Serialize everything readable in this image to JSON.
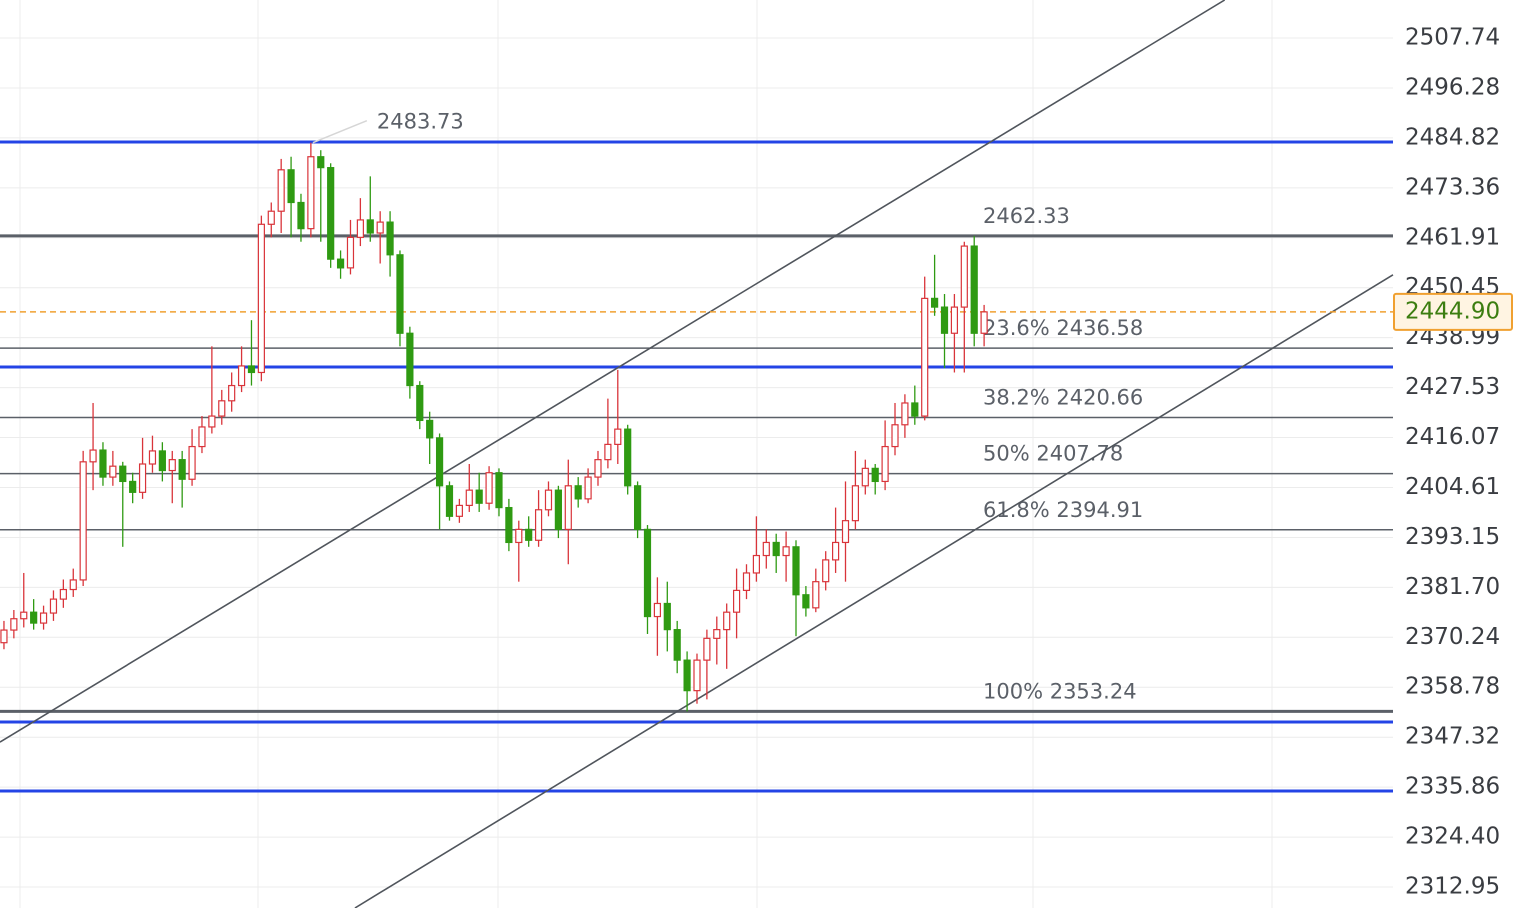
{
  "chart_data": {
    "type": "candlestick",
    "up_color": "#d9343a",
    "down_color": "#2f9a12",
    "xlim": [
      -0.4,
      140.3
    ],
    "ylim": [
      2308.13,
      2516.46
    ],
    "yticks": [
      2312.95,
      {
        "value": 2324.4,
        "label": "2324.40"
      },
      2335.86,
      2347.32,
      2358.78,
      2370.24,
      {
        "value": 2381.7,
        "label": "2381.70"
      },
      2393.15,
      2404.61,
      2416.07,
      2427.53,
      2438.99,
      2450.45,
      2461.91,
      2473.36,
      2484.82,
      2496.28,
      2507.74
    ],
    "grid": true,
    "open": [
      2369.0,
      2371.9,
      2374.5,
      2376.0,
      2373.5,
      2375.8,
      2379.0,
      2381.2,
      2383.4,
      2410.5,
      2413.2,
      2407.0,
      2409.5,
      2406.0,
      2403.5,
      2410.0,
      2413.0,
      2408.5,
      2411.0,
      2406.5,
      2414.0,
      2418.5,
      2421.0,
      2424.5,
      2428.0,
      2432.5,
      2431.0,
      2465.0,
      2468.0,
      2477.5,
      2470.0,
      2464.0,
      2480.5,
      2478.0,
      2457.0,
      2455.0,
      2462.0,
      2466.0,
      2463.0,
      2465.5,
      2458.0,
      2440.0,
      2428.0,
      2420.0,
      2416.0,
      2405.0,
      2398.0,
      2400.5,
      2404.0,
      2401.0,
      2408.0,
      2400.0,
      2392.0,
      2395.0,
      2392.5,
      2399.5,
      2404.0,
      2395.0,
      2405.0,
      2402.0,
      2407.0,
      2411.0,
      2414.5,
      2418.0,
      2405.0,
      2395.0,
      2375.0,
      2378.0,
      2372.0,
      2365.0,
      2358.0,
      2365.0,
      2370.0,
      2372.0,
      2376.0,
      2381.0,
      2385.0,
      2389.0,
      2392.0,
      2389.0,
      2391.0,
      2380.0,
      2377.0,
      2383.0,
      2388.0,
      2392.0,
      2397.0,
      2405.0,
      2409.0,
      2406.0,
      2414.0,
      2419.0,
      2424.0,
      2421.0,
      2448.0,
      2446.0,
      2440.0,
      2446.0,
      2460.0,
      2440.0
    ],
    "high": [
      2374.0,
      2376.5,
      2385.0,
      2379.0,
      2377.5,
      2381.0,
      2383.5,
      2386.0,
      2413.0,
      2424.0,
      2415.0,
      2413.0,
      2410.5,
      2408.0,
      2416.0,
      2416.5,
      2415.0,
      2413.0,
      2413.0,
      2418.0,
      2421.0,
      2437.0,
      2427.0,
      2431.0,
      2437.0,
      2443.0,
      2467.0,
      2470.0,
      2480.0,
      2480.5,
      2472.0,
      2483.73,
      2482.0,
      2479.0,
      2459.0,
      2466.0,
      2471.0,
      2476.0,
      2468.0,
      2468.0,
      2459.0,
      2441.5,
      2429.0,
      2422.0,
      2417.0,
      2406.0,
      2402.0,
      2410.0,
      2408.0,
      2409.5,
      2409.0,
      2402.0,
      2397.0,
      2398.0,
      2404.0,
      2406.0,
      2405.0,
      2411.0,
      2407.0,
      2409.0,
      2413.0,
      2425.0,
      2431.6,
      2419.0,
      2406.0,
      2396.0,
      2384.0,
      2383.0,
      2374.0,
      2367.0,
      2366.5,
      2372.0,
      2375.0,
      2378.0,
      2386.0,
      2387.0,
      2398.0,
      2395.0,
      2394.0,
      2394.5,
      2392.5,
      2382.0,
      2386.0,
      2390.0,
      2400.0,
      2406.0,
      2413.0,
      2411.0,
      2410.0,
      2420.0,
      2424.0,
      2426.0,
      2428.0,
      2453.0,
      2458.0,
      2449.0,
      2449.0,
      2461.0,
      2462.33,
      2446.5
    ],
    "low": [
      2367.5,
      2370.0,
      2372.5,
      2372.0,
      2372.0,
      2374.0,
      2377.0,
      2379.5,
      2382.0,
      2404.0,
      2405.0,
      2405.0,
      2391.0,
      2401.0,
      2402.0,
      2408.0,
      2406.0,
      2401.0,
      2400.0,
      2405.0,
      2412.5,
      2417.0,
      2419.0,
      2422.0,
      2426.5,
      2428.0,
      2429.0,
      2462.0,
      2463.0,
      2462.0,
      2461.0,
      2462.0,
      2461.0,
      2455.0,
      2452.5,
      2453.5,
      2460.0,
      2461.0,
      2456.0,
      2453.0,
      2437.0,
      2425.0,
      2418.0,
      2410.0,
      2395.0,
      2397.0,
      2396.5,
      2399.0,
      2399.0,
      2399.5,
      2398.0,
      2390.0,
      2383.0,
      2391.0,
      2391.0,
      2398.0,
      2393.0,
      2387.0,
      2400.0,
      2401.0,
      2405.0,
      2409.0,
      2410.0,
      2403.0,
      2393.0,
      2371.0,
      2366.0,
      2367.0,
      2362.0,
      2353.24,
      2355.0,
      2356.0,
      2364.0,
      2363.0,
      2370.0,
      2379.0,
      2383.0,
      2386.0,
      2385.0,
      2383.0,
      2370.5,
      2375.0,
      2376.0,
      2381.0,
      2385.0,
      2383.0,
      2395.0,
      2403.0,
      2403.0,
      2404.0,
      2412.0,
      2416.0,
      2419.0,
      2420.0,
      2444.0,
      2432.0,
      2431.0,
      2431.0,
      2437.0,
      2437.0
    ],
    "close": [
      2371.9,
      2374.5,
      2376.0,
      2373.5,
      2375.8,
      2379.0,
      2381.2,
      2383.4,
      2410.5,
      2413.2,
      2407.0,
      2409.5,
      2406.0,
      2403.5,
      2410.0,
      2413.0,
      2408.5,
      2411.0,
      2406.5,
      2414.0,
      2418.5,
      2421.0,
      2424.5,
      2428.0,
      2432.5,
      2431.0,
      2465.0,
      2468.0,
      2477.5,
      2470.0,
      2464.0,
      2480.5,
      2478.0,
      2457.0,
      2455.0,
      2462.0,
      2466.0,
      2463.0,
      2465.5,
      2458.0,
      2440.0,
      2428.0,
      2420.0,
      2416.0,
      2405.0,
      2398.0,
      2400.5,
      2404.0,
      2401.0,
      2408.0,
      2400.0,
      2392.0,
      2395.0,
      2392.5,
      2399.5,
      2404.0,
      2395.0,
      2405.0,
      2402.0,
      2407.0,
      2411.0,
      2414.5,
      2418.0,
      2405.0,
      2395.0,
      2375.0,
      2378.0,
      2372.0,
      2365.0,
      2358.0,
      2365.0,
      2370.0,
      2372.0,
      2376.0,
      2381.0,
      2385.0,
      2389.0,
      2392.0,
      2389.0,
      2391.0,
      2380.0,
      2377.0,
      2383.0,
      2388.0,
      2392.0,
      2397.0,
      2405.0,
      2409.0,
      2406.0,
      2414.0,
      2419.0,
      2424.0,
      2421.0,
      2448.0,
      2446.0,
      2440.0,
      2446.0,
      2460.0,
      2440.0,
      2444.9
    ],
    "peak_label": 2483.73,
    "horizontal_lines": {
      "color": "#2444e6",
      "values": [
        2483.88,
        2432.26,
        2350.8,
        2334.98
      ]
    },
    "fib_levels": {
      "color": "#5b6068",
      "levels": [
        {
          "value": 2462.33
        },
        {
          "value": 2436.58,
          "label": "23.6% 2436.58"
        },
        {
          "value": 2420.66,
          "label": "38.2% 2420.66"
        },
        {
          "value": 2407.78,
          "label": "50% 2407.78"
        },
        {
          "value": 2394.91,
          "label": "61.8% 2394.91"
        },
        {
          "value": 2353.24,
          "label": "100% 2353.24"
        }
      ]
    },
    "trendlines": {
      "color": "#50555c",
      "lines": [
        {
          "x": [
            -0.4,
            123.3
          ],
          "y": [
            2346.2,
            2516.46
          ]
        },
        {
          "x": [
            35.45,
            140.3
          ],
          "y": [
            2308.13,
            2453.4
          ]
        }
      ]
    },
    "last_price": {
      "value": 2444.9,
      "label": "2444.90"
    },
    "last_price_color": "#f0a030"
  }
}
